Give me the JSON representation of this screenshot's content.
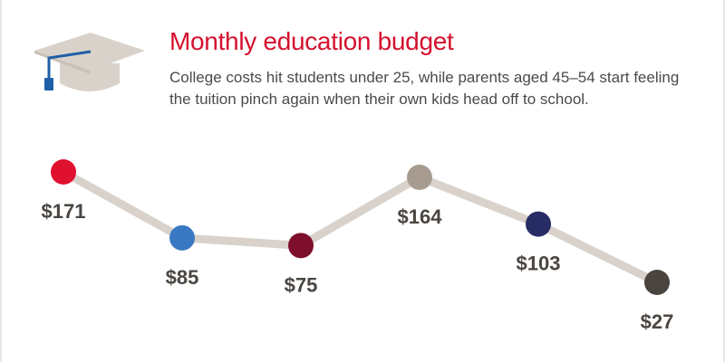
{
  "header": {
    "title": "Monthly education budget",
    "subtitle": "College costs hit students under 25, while parents aged 45–54 start feeling the tuition pinch again when their own kids head off to school.",
    "icon": "graduation-cap-icon"
  },
  "chart_data": {
    "type": "line",
    "title": "Monthly education budget",
    "xlabel": "",
    "ylabel": "",
    "grid": false,
    "legend": "none",
    "line_color": "#d8d2cb",
    "points": [
      {
        "value": 171,
        "label": "$171",
        "color": "#e0102f"
      },
      {
        "value": 85,
        "label": "$85",
        "color": "#3b78c2"
      },
      {
        "value": 75,
        "label": "$75",
        "color": "#7d0f2c"
      },
      {
        "value": 164,
        "label": "$164",
        "color": "#a89c91"
      },
      {
        "value": 103,
        "label": "$103",
        "color": "#272d64"
      },
      {
        "value": 27,
        "label": "$27",
        "color": "#4a443e"
      }
    ]
  }
}
